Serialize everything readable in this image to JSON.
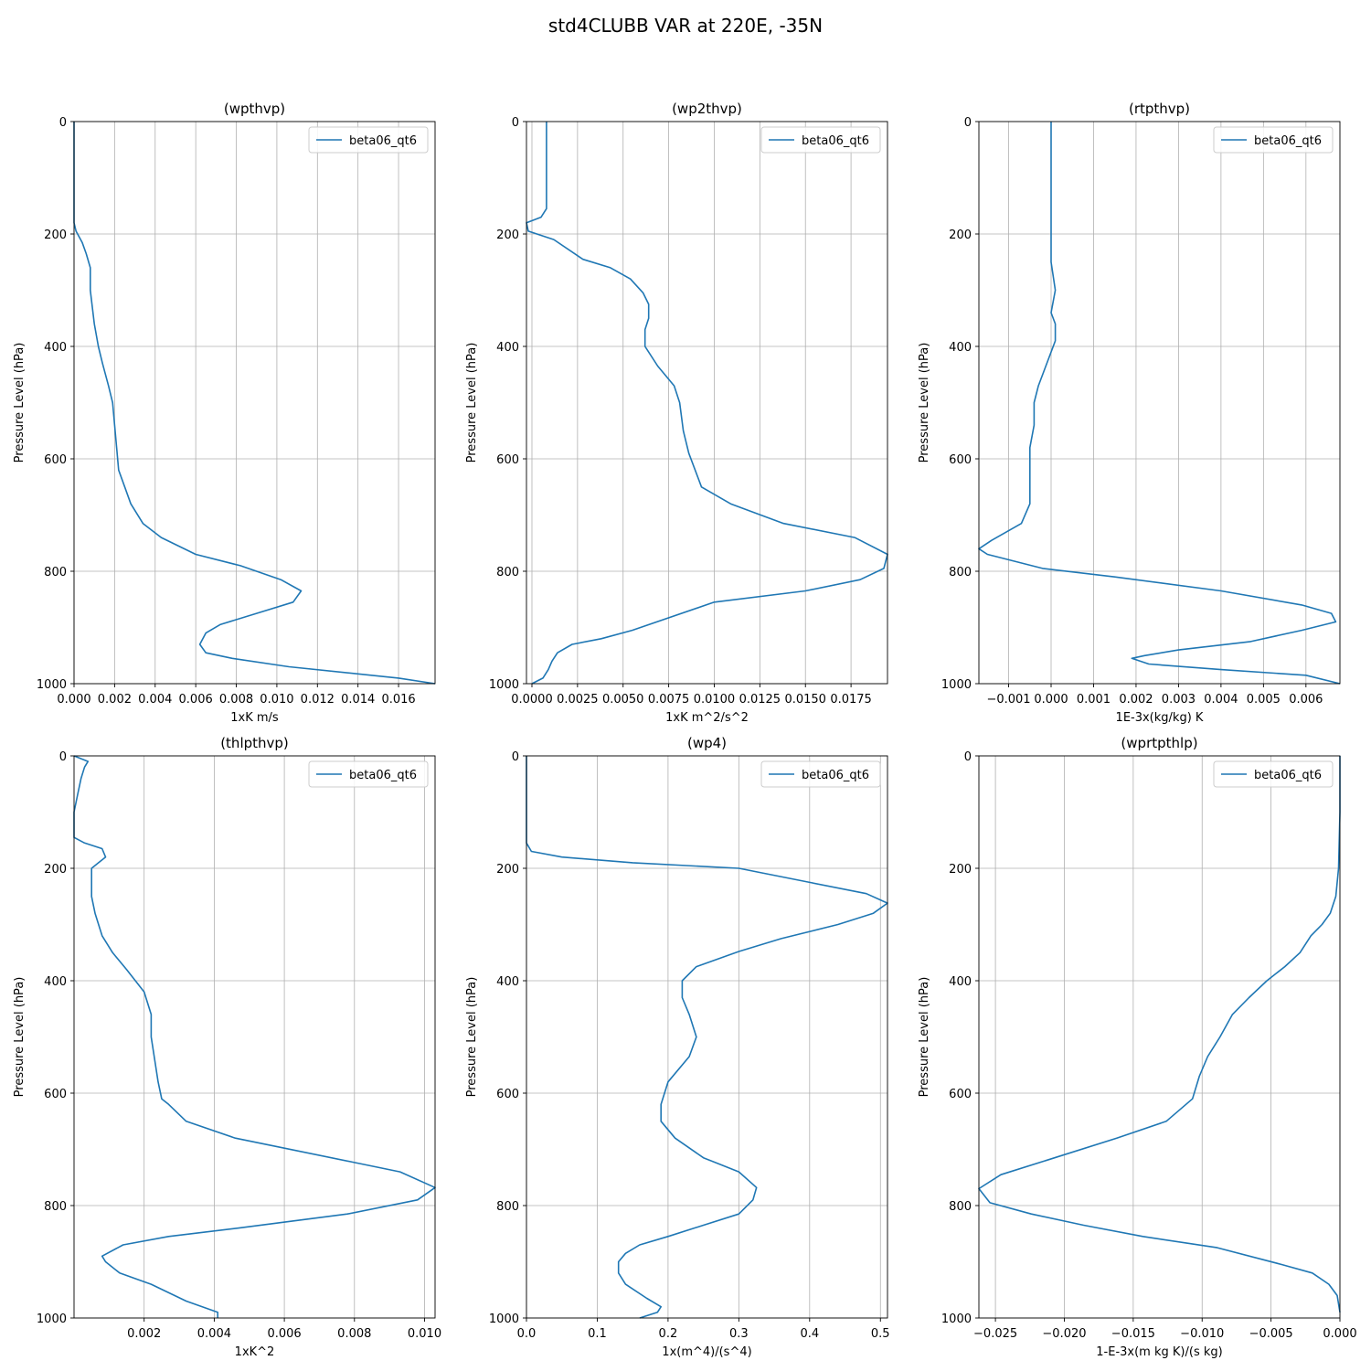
{
  "figure": {
    "title": "std4CLUBB VAR at 220E, -35N"
  },
  "chart_data": [
    {
      "type": "line",
      "title": "(wpthvp)",
      "xlabel": "1xK m/s",
      "ylabel": "Pressure Level (hPa)",
      "xlim": [
        0,
        0.0178
      ],
      "ylim": [
        1000,
        0
      ],
      "xticks": [
        0.0,
        0.002,
        0.004,
        0.006,
        0.008,
        0.01,
        0.012,
        0.014,
        0.016
      ],
      "xtick_labels": [
        "0.000",
        "0.002",
        "0.004",
        "0.006",
        "0.008",
        "0.010",
        "0.012",
        "0.014",
        "0.016"
      ],
      "yticks": [
        0,
        200,
        400,
        600,
        800,
        1000
      ],
      "ytick_labels": [
        "0",
        "200",
        "400",
        "600",
        "800",
        "1000"
      ],
      "grid": true,
      "legend_position": "top-right",
      "series": [
        {
          "name": "beta06_qt6",
          "color": "#1f77b4",
          "x": [
            0.0,
            0.0,
            0.0,
            0.0,
            0.0001,
            0.0004,
            0.0006,
            0.0008,
            0.0008,
            0.0009,
            0.001,
            0.0012,
            0.0014,
            0.0017,
            0.0019,
            0.002,
            0.0021,
            0.0022,
            0.0025,
            0.0028,
            0.0034,
            0.0043,
            0.006,
            0.0082,
            0.0102,
            0.0112,
            0.0108,
            0.009,
            0.0072,
            0.0065,
            0.0062,
            0.0065,
            0.0078,
            0.0106,
            0.016,
            0.0178
          ],
          "y": [
            0,
            100,
            150,
            180,
            195,
            215,
            235,
            260,
            300,
            330,
            360,
            400,
            430,
            470,
            500,
            540,
            580,
            620,
            650,
            680,
            715,
            740,
            770,
            790,
            815,
            835,
            855,
            875,
            895,
            910,
            930,
            945,
            955,
            970,
            990,
            1000
          ]
        }
      ]
    },
    {
      "type": "line",
      "title": "(wp2thvp)",
      "xlabel": "1xK m^2/s^2",
      "ylabel": "Pressure Level (hPa)",
      "xlim": [
        -0.0003,
        0.0195
      ],
      "ylim": [
        1000,
        0
      ],
      "xticks": [
        0.0,
        0.0025,
        0.005,
        0.0075,
        0.01,
        0.0125,
        0.015,
        0.0175
      ],
      "xtick_labels": [
        "0.0000",
        "0.0025",
        "0.0050",
        "0.0075",
        "0.0100",
        "0.0125",
        "0.0150",
        "0.0175"
      ],
      "yticks": [
        0,
        200,
        400,
        600,
        800,
        1000
      ],
      "ytick_labels": [
        "0",
        "200",
        "400",
        "600",
        "800",
        "1000"
      ],
      "grid": true,
      "legend_position": "top-right",
      "series": [
        {
          "name": "beta06_qt6",
          "color": "#1f77b4",
          "x": [
            0.0008,
            0.0008,
            0.0008,
            0.0005,
            -0.0003,
            -0.0002,
            0.0012,
            0.0028,
            0.0043,
            0.0054,
            0.0061,
            0.0064,
            0.0064,
            0.0062,
            0.0062,
            0.0069,
            0.0078,
            0.0081,
            0.0083,
            0.0086,
            0.0093,
            0.0109,
            0.0138,
            0.0177,
            0.0195,
            0.0193,
            0.018,
            0.015,
            0.01,
            0.0055,
            0.0038,
            0.0022,
            0.0014,
            0.0011,
            0.0009,
            0.0006,
            0.0
          ],
          "y": [
            0,
            100,
            155,
            170,
            180,
            195,
            210,
            245,
            260,
            280,
            305,
            325,
            350,
            370,
            400,
            435,
            470,
            500,
            550,
            590,
            650,
            680,
            715,
            740,
            770,
            795,
            815,
            835,
            855,
            905,
            920,
            930,
            945,
            960,
            975,
            990,
            1000
          ]
        }
      ]
    },
    {
      "type": "line",
      "title": "(rtpthvp)",
      "xlabel": "1E-3x(kg/kg) K",
      "ylabel": "Pressure Level (hPa)",
      "xlim": [
        -0.0017,
        0.0068
      ],
      "ylim": [
        1000,
        0
      ],
      "xticks": [
        -0.001,
        0.0,
        0.001,
        0.002,
        0.003,
        0.004,
        0.005,
        0.006
      ],
      "xtick_labels": [
        "−0.001",
        "0.000",
        "0.001",
        "0.002",
        "0.003",
        "0.004",
        "0.005",
        "0.006"
      ],
      "yticks": [
        0,
        200,
        400,
        600,
        800,
        1000
      ],
      "ytick_labels": [
        "0",
        "200",
        "400",
        "600",
        "800",
        "1000"
      ],
      "grid": true,
      "legend_position": "top-right",
      "series": [
        {
          "name": "beta06_qt6",
          "color": "#1f77b4",
          "x": [
            0.0,
            0.0,
            0.0,
            0.0,
            0.0001,
            0.0,
            0.0001,
            0.0001,
            -0.0001,
            -0.0003,
            -0.0004,
            -0.0004,
            -0.0005,
            -0.0005,
            -0.0005,
            -0.0005,
            -0.0007,
            -0.0014,
            -0.0017,
            -0.0015,
            -0.0002,
            0.0015,
            0.004,
            0.0059,
            0.0066,
            0.0067,
            0.0059,
            0.0047,
            0.003,
            0.0022,
            0.0019,
            0.0023,
            0.004,
            0.006,
            0.0068
          ],
          "y": [
            0,
            100,
            200,
            250,
            300,
            340,
            360,
            390,
            430,
            470,
            500,
            540,
            580,
            620,
            650,
            680,
            715,
            745,
            760,
            770,
            795,
            810,
            835,
            860,
            875,
            890,
            905,
            925,
            940,
            950,
            955,
            965,
            975,
            985,
            1000
          ]
        }
      ]
    },
    {
      "type": "line",
      "title": "(thlpthvp)",
      "xlabel": "1xK^2",
      "ylabel": "Pressure Level (hPa)",
      "xlim": [
        0,
        0.0103
      ],
      "ylim": [
        1000,
        0
      ],
      "xticks": [
        0.002,
        0.004,
        0.006,
        0.008,
        0.01
      ],
      "xtick_labels": [
        "0.002",
        "0.004",
        "0.006",
        "0.008",
        "0.010"
      ],
      "yticks": [
        0,
        200,
        400,
        600,
        800,
        1000
      ],
      "ytick_labels": [
        "0",
        "200",
        "400",
        "600",
        "800",
        "1000"
      ],
      "grid": true,
      "legend_position": "top-right",
      "series": [
        {
          "name": "beta06_qt6",
          "color": "#1f77b4",
          "x": [
            0.0,
            0.0004,
            0.0003,
            0.0002,
            0.0001,
            0.0,
            0.0,
            0.0,
            0.0003,
            0.0008,
            0.0009,
            0.0007,
            0.0005,
            0.0005,
            0.0005,
            0.0006,
            0.0008,
            0.0011,
            0.0015,
            0.002,
            0.0022,
            0.0022,
            0.0023,
            0.0024,
            0.0025,
            0.0027,
            0.0032,
            0.0046,
            0.0093,
            0.0103,
            0.0098,
            0.0078,
            0.0047,
            0.0027,
            0.0014,
            0.0008,
            0.0009,
            0.0013,
            0.0022,
            0.0032,
            0.0041,
            0.0041
          ],
          "y": [
            0,
            10,
            20,
            40,
            70,
            100,
            130,
            145,
            155,
            165,
            180,
            190,
            200,
            220,
            250,
            280,
            320,
            350,
            380,
            420,
            460,
            500,
            540,
            580,
            610,
            620,
            650,
            680,
            740,
            768,
            790,
            815,
            840,
            855,
            870,
            890,
            900,
            920,
            940,
            970,
            990,
            1000
          ]
        }
      ]
    },
    {
      "type": "line",
      "title": "(wp4)",
      "xlabel": "1x(m^4)/(s^4)",
      "ylabel": "Pressure Level (hPa)",
      "xlim": [
        0,
        0.51
      ],
      "ylim": [
        1000,
        0
      ],
      "xticks": [
        0.0,
        0.1,
        0.2,
        0.3,
        0.4,
        0.5
      ],
      "xtick_labels": [
        "0.0",
        "0.1",
        "0.2",
        "0.3",
        "0.4",
        "0.5"
      ],
      "yticks": [
        0,
        200,
        400,
        600,
        800,
        1000
      ],
      "ytick_labels": [
        "0",
        "200",
        "400",
        "600",
        "800",
        "1000"
      ],
      "grid": true,
      "legend_position": "top-right",
      "series": [
        {
          "name": "beta06_qt6",
          "color": "#1f77b4",
          "x": [
            0.0,
            0.0,
            0.0,
            0.007,
            0.05,
            0.15,
            0.3,
            0.4,
            0.48,
            0.51,
            0.49,
            0.44,
            0.36,
            0.3,
            0.24,
            0.22,
            0.22,
            0.23,
            0.24,
            0.23,
            0.2,
            0.19,
            0.19,
            0.21,
            0.25,
            0.3,
            0.325,
            0.32,
            0.3,
            0.25,
            0.2,
            0.16,
            0.14,
            0.13,
            0.13,
            0.14,
            0.17,
            0.19,
            0.185,
            0.16
          ],
          "y": [
            0,
            100,
            155,
            170,
            180,
            190,
            200,
            225,
            245,
            262,
            280,
            300,
            325,
            348,
            375,
            400,
            430,
            460,
            500,
            535,
            580,
            620,
            650,
            680,
            715,
            740,
            768,
            790,
            815,
            835,
            855,
            870,
            885,
            900,
            920,
            940,
            965,
            980,
            990,
            1000
          ]
        }
      ]
    },
    {
      "type": "line",
      "title": "(wprtpthlp)",
      "xlabel": "1-E-3x(m kg K)/(s kg)",
      "ylabel": "Pressure Level (hPa)",
      "xlim": [
        -0.0262,
        0.0
      ],
      "ylim": [
        1000,
        0
      ],
      "xticks": [
        -0.025,
        -0.02,
        -0.015,
        -0.01,
        -0.005,
        0.0
      ],
      "xtick_labels": [
        "−0.025",
        "−0.020",
        "−0.015",
        "−0.010",
        "−0.005",
        "0.000"
      ],
      "yticks": [
        0,
        200,
        400,
        600,
        800,
        1000
      ],
      "ytick_labels": [
        "0",
        "200",
        "400",
        "600",
        "800",
        "1000"
      ],
      "grid": true,
      "legend_position": "top-right",
      "series": [
        {
          "name": "beta06_qt6",
          "color": "#1f77b4",
          "x": [
            0.0,
            0.0,
            -0.0001,
            -0.0003,
            -0.0007,
            -0.0013,
            -0.0021,
            -0.0029,
            -0.004,
            -0.0053,
            -0.0066,
            -0.0078,
            -0.0087,
            -0.0096,
            -0.0102,
            -0.0107,
            -0.0126,
            -0.0162,
            -0.0207,
            -0.0246,
            -0.0262,
            -0.0254,
            -0.0224,
            -0.0186,
            -0.0143,
            -0.0089,
            -0.0042,
            -0.002,
            -0.0008,
            -0.0002,
            0.0
          ],
          "y": [
            0,
            100,
            200,
            250,
            280,
            300,
            320,
            350,
            375,
            400,
            430,
            460,
            500,
            535,
            570,
            610,
            650,
            680,
            715,
            745,
            770,
            795,
            815,
            835,
            855,
            875,
            905,
            920,
            940,
            960,
            990
          ]
        }
      ]
    }
  ]
}
